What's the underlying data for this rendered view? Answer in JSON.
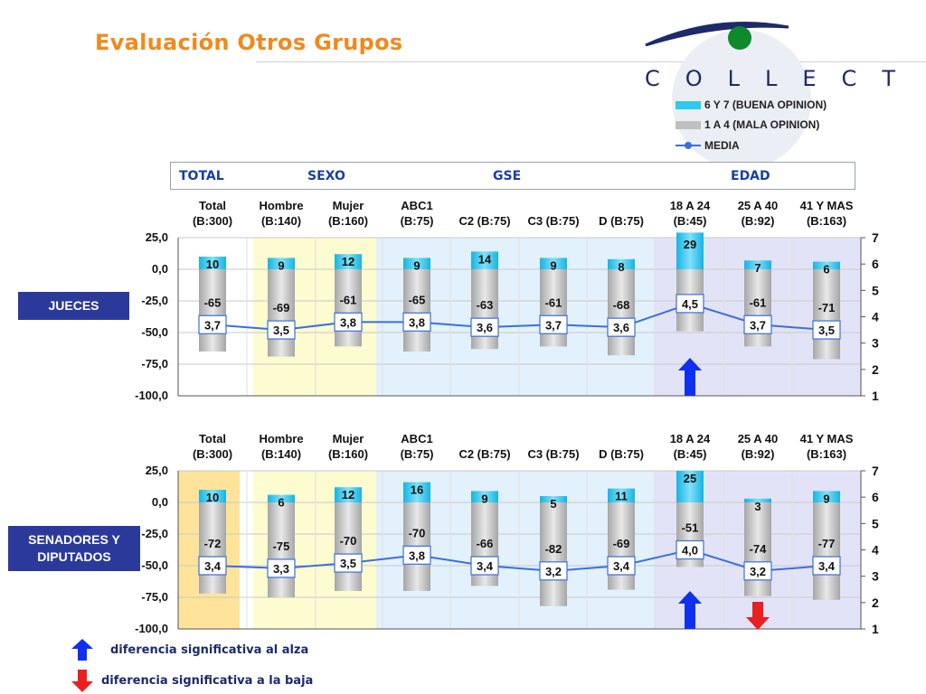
{
  "title": "Evaluación Otros Grupos",
  "logo": "COLLECT",
  "legend": {
    "items": [
      {
        "label": "6 Y 7 (BUENA OPINION)",
        "color": "#2ec9ee"
      },
      {
        "label": "1 A 4 (MALA OPINION)",
        "color": "#c0c0c0"
      },
      {
        "label": "MEDIA",
        "color": "#3a6fdc"
      }
    ]
  },
  "groups": {
    "total": "TOTAL",
    "sexo": "SEXO",
    "gse": "GSE",
    "edad": "EDAD"
  },
  "footnotes": {
    "up": "diferencia significativa al alza",
    "down": "diferencia significativa a la baja"
  },
  "colors": {
    "good": "#2ec9ee",
    "bad": "#c0c0c0",
    "media": "#3a6fdc",
    "sexo_band": "#fdfbd0",
    "gse_band": "#e2f1fb",
    "edad_band": "#e3e3f8",
    "total_band_2": "#fde49a",
    "up_arrow": "#1030f0",
    "down_arrow": "#e82020"
  },
  "chart_data": [
    {
      "type": "bar",
      "row_label": "JUECES",
      "categories": [
        [
          "Total",
          "(B:300)"
        ],
        [
          "Hombre",
          "(B:140)"
        ],
        [
          "Mujer",
          "(B:160)"
        ],
        [
          "ABC1",
          "(B:75)"
        ],
        [
          "C2 (B:75)"
        ],
        [
          "C3 (B:75)"
        ],
        [
          "D (B:75)"
        ],
        [
          "18 A 24",
          "(B:45)"
        ],
        [
          "25 A 40",
          "(B:92)"
        ],
        [
          "41 Y MAS",
          "(B:163)"
        ]
      ],
      "series": [
        {
          "name": "6 Y 7 (BUENA OPINION)",
          "values": [
            10,
            9,
            12,
            9,
            14,
            9,
            8,
            29,
            7,
            6
          ]
        },
        {
          "name": "1 A 4 (MALA OPINION)",
          "values": [
            -65,
            -69,
            -61,
            -65,
            -63,
            -61,
            -68,
            -49,
            -61,
            -71
          ]
        },
        {
          "name": "MEDIA",
          "values": [
            "3,7",
            "3,5",
            "3,8",
            "3,8",
            "3,6",
            "3,7",
            "3,6",
            "4,5",
            "3,7",
            "3,5"
          ],
          "numeric": [
            3.7,
            3.5,
            3.8,
            3.8,
            3.6,
            3.7,
            3.6,
            4.5,
            3.7,
            3.5
          ]
        }
      ],
      "bad_labels": [
        "-65",
        "-69",
        "-61",
        "-65",
        "-63",
        "-61",
        "-68",
        "",
        "-61",
        "-71"
      ],
      "good_labels": [
        "10",
        "9",
        "12",
        "9",
        "14",
        "9",
        "8",
        "29",
        "7",
        "6"
      ],
      "yleft_ticks": [
        "25,0",
        "0,0",
        "-25,0",
        "-50,0",
        "-75,0",
        "-100,0"
      ],
      "yleft_lim": [
        -100,
        25
      ],
      "yright_ticks": [
        "7",
        "6",
        "5",
        "4",
        "3",
        "2",
        "1"
      ],
      "yright_lim": [
        1,
        7
      ],
      "significance": {
        "up": [
          7
        ],
        "down": []
      },
      "total_band_highlight": false
    },
    {
      "type": "bar",
      "row_label": "SENADORES Y DIPUTADOS",
      "categories": [
        [
          "Total",
          "(B:300)"
        ],
        [
          "Hombre",
          "(B:140)"
        ],
        [
          "Mujer",
          "(B:160)"
        ],
        [
          "ABC1",
          "(B:75)"
        ],
        [
          "C2 (B:75)"
        ],
        [
          "C3 (B:75)"
        ],
        [
          "D (B:75)"
        ],
        [
          "18 A 24",
          "(B:45)"
        ],
        [
          "25 A 40",
          "(B:92)"
        ],
        [
          "41 Y MAS",
          "(B:163)"
        ]
      ],
      "series": [
        {
          "name": "6 Y 7 (BUENA OPINION)",
          "values": [
            10,
            6,
            12,
            16,
            9,
            5,
            11,
            25,
            3,
            9
          ]
        },
        {
          "name": "1 A 4 (MALA OPINION)",
          "values": [
            -72,
            -75,
            -70,
            -70,
            -66,
            -82,
            -69,
            -51,
            -74,
            -77
          ]
        },
        {
          "name": "MEDIA",
          "values": [
            "3,4",
            "3,3",
            "3,5",
            "3,8",
            "3,4",
            "3,2",
            "3,4",
            "4,0",
            "3,2",
            "3,4"
          ],
          "numeric": [
            3.4,
            3.3,
            3.5,
            3.8,
            3.4,
            3.2,
            3.4,
            4.0,
            3.2,
            3.4
          ]
        }
      ],
      "bad_labels": [
        "-72",
        "-75",
        "-70",
        "-70",
        "-66",
        "-82",
        "-69",
        "-51",
        "-74",
        "-77"
      ],
      "good_labels": [
        "10",
        "6",
        "12",
        "16",
        "9",
        "5",
        "11",
        "25",
        "3",
        "9"
      ],
      "yleft_ticks": [
        "25,0",
        "0,0",
        "-25,0",
        "-50,0",
        "-75,0",
        "-100,0"
      ],
      "yleft_lim": [
        -100,
        25
      ],
      "yright_ticks": [
        "7",
        "6",
        "5",
        "4",
        "3",
        "2",
        "1"
      ],
      "yright_lim": [
        1,
        7
      ],
      "significance": {
        "up": [
          7
        ],
        "down": [
          8
        ]
      },
      "total_band_highlight": true
    }
  ]
}
